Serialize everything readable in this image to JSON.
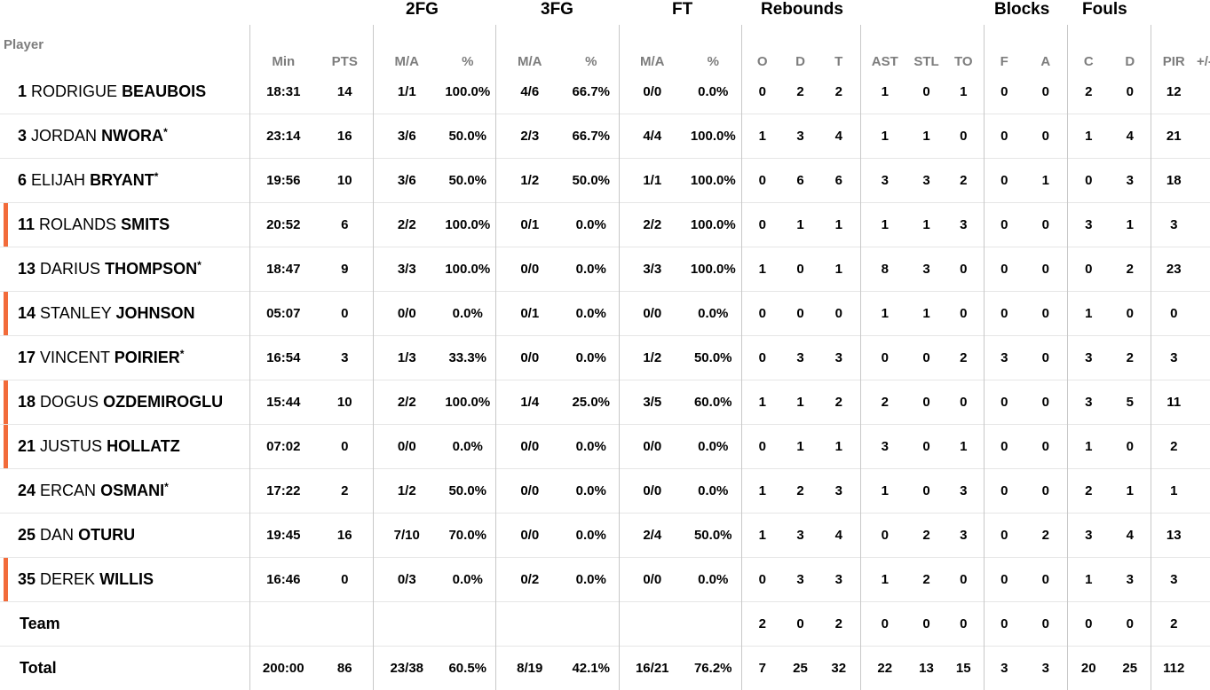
{
  "headers": {
    "player": "Player",
    "groups": {
      "fg2": "2FG",
      "fg3": "3FG",
      "ft": "FT",
      "rebounds": "Rebounds",
      "blocks": "Blocks",
      "fouls": "Fouls"
    },
    "cols": {
      "min": "Min",
      "pts": "PTS",
      "fg2_ma": "M/A",
      "fg2_pct": "%",
      "fg3_ma": "M/A",
      "fg3_pct": "%",
      "ft_ma": "M/A",
      "ft_pct": "%",
      "reb_o": "O",
      "reb_d": "D",
      "reb_t": "T",
      "ast": "AST",
      "stl": "STL",
      "to": "TO",
      "blk_f": "F",
      "blk_a": "A",
      "foul_c": "C",
      "foul_d": "D",
      "pir": "PIR",
      "pm": "+/-"
    }
  },
  "colors": {
    "starter_marker": "#f26b3a",
    "divider": "#c8c8c8",
    "header_text": "#7d7d7d"
  },
  "players": [
    {
      "num": "1",
      "first": "RODRIGUE",
      "last": "BEAUBOIS",
      "star": "",
      "starter": false,
      "min": "18:31",
      "pts": "14",
      "fg2_ma": "1/1",
      "fg2_pct": "100.0%",
      "fg3_ma": "4/6",
      "fg3_pct": "66.7%",
      "ft_ma": "0/0",
      "ft_pct": "0.0%",
      "reb_o": "0",
      "reb_d": "2",
      "reb_t": "2",
      "ast": "1",
      "stl": "0",
      "to": "1",
      "blk_f": "0",
      "blk_a": "0",
      "foul_c": "2",
      "foul_d": "0",
      "pir": "12"
    },
    {
      "num": "3",
      "first": "JORDAN",
      "last": "NWORA",
      "star": "*",
      "starter": false,
      "min": "23:14",
      "pts": "16",
      "fg2_ma": "3/6",
      "fg2_pct": "50.0%",
      "fg3_ma": "2/3",
      "fg3_pct": "66.7%",
      "ft_ma": "4/4",
      "ft_pct": "100.0%",
      "reb_o": "1",
      "reb_d": "3",
      "reb_t": "4",
      "ast": "1",
      "stl": "1",
      "to": "0",
      "blk_f": "0",
      "blk_a": "0",
      "foul_c": "1",
      "foul_d": "4",
      "pir": "21"
    },
    {
      "num": "6",
      "first": "ELIJAH",
      "last": "BRYANT",
      "star": "*",
      "starter": false,
      "min": "19:56",
      "pts": "10",
      "fg2_ma": "3/6",
      "fg2_pct": "50.0%",
      "fg3_ma": "1/2",
      "fg3_pct": "50.0%",
      "ft_ma": "1/1",
      "ft_pct": "100.0%",
      "reb_o": "0",
      "reb_d": "6",
      "reb_t": "6",
      "ast": "3",
      "stl": "3",
      "to": "2",
      "blk_f": "0",
      "blk_a": "1",
      "foul_c": "0",
      "foul_d": "3",
      "pir": "18"
    },
    {
      "num": "11",
      "first": "ROLANDS",
      "last": "SMITS",
      "star": "",
      "starter": true,
      "min": "20:52",
      "pts": "6",
      "fg2_ma": "2/2",
      "fg2_pct": "100.0%",
      "fg3_ma": "0/1",
      "fg3_pct": "0.0%",
      "ft_ma": "2/2",
      "ft_pct": "100.0%",
      "reb_o": "0",
      "reb_d": "1",
      "reb_t": "1",
      "ast": "1",
      "stl": "1",
      "to": "3",
      "blk_f": "0",
      "blk_a": "0",
      "foul_c": "3",
      "foul_d": "1",
      "pir": "3"
    },
    {
      "num": "13",
      "first": "DARIUS",
      "last": "THOMPSON",
      "star": "*",
      "starter": false,
      "min": "18:47",
      "pts": "9",
      "fg2_ma": "3/3",
      "fg2_pct": "100.0%",
      "fg3_ma": "0/0",
      "fg3_pct": "0.0%",
      "ft_ma": "3/3",
      "ft_pct": "100.0%",
      "reb_o": "1",
      "reb_d": "0",
      "reb_t": "1",
      "ast": "8",
      "stl": "3",
      "to": "0",
      "blk_f": "0",
      "blk_a": "0",
      "foul_c": "0",
      "foul_d": "2",
      "pir": "23"
    },
    {
      "num": "14",
      "first": "STANLEY",
      "last": "JOHNSON",
      "star": "",
      "starter": true,
      "min": "05:07",
      "pts": "0",
      "fg2_ma": "0/0",
      "fg2_pct": "0.0%",
      "fg3_ma": "0/1",
      "fg3_pct": "0.0%",
      "ft_ma": "0/0",
      "ft_pct": "0.0%",
      "reb_o": "0",
      "reb_d": "0",
      "reb_t": "0",
      "ast": "1",
      "stl": "1",
      "to": "0",
      "blk_f": "0",
      "blk_a": "0",
      "foul_c": "1",
      "foul_d": "0",
      "pir": "0"
    },
    {
      "num": "17",
      "first": "VINCENT",
      "last": "POIRIER",
      "star": "*",
      "starter": false,
      "min": "16:54",
      "pts": "3",
      "fg2_ma": "1/3",
      "fg2_pct": "33.3%",
      "fg3_ma": "0/0",
      "fg3_pct": "0.0%",
      "ft_ma": "1/2",
      "ft_pct": "50.0%",
      "reb_o": "0",
      "reb_d": "3",
      "reb_t": "3",
      "ast": "0",
      "stl": "0",
      "to": "2",
      "blk_f": "3",
      "blk_a": "0",
      "foul_c": "3",
      "foul_d": "2",
      "pir": "3"
    },
    {
      "num": "18",
      "first": "DOGUS",
      "last": "OZDEMIROGLU",
      "star": "",
      "starter": true,
      "min": "15:44",
      "pts": "10",
      "fg2_ma": "2/2",
      "fg2_pct": "100.0%",
      "fg3_ma": "1/4",
      "fg3_pct": "25.0%",
      "ft_ma": "3/5",
      "ft_pct": "60.0%",
      "reb_o": "1",
      "reb_d": "1",
      "reb_t": "2",
      "ast": "2",
      "stl": "0",
      "to": "0",
      "blk_f": "0",
      "blk_a": "0",
      "foul_c": "3",
      "foul_d": "5",
      "pir": "11"
    },
    {
      "num": "21",
      "first": "JUSTUS",
      "last": "HOLLATZ",
      "star": "",
      "starter": true,
      "min": "07:02",
      "pts": "0",
      "fg2_ma": "0/0",
      "fg2_pct": "0.0%",
      "fg3_ma": "0/0",
      "fg3_pct": "0.0%",
      "ft_ma": "0/0",
      "ft_pct": "0.0%",
      "reb_o": "0",
      "reb_d": "1",
      "reb_t": "1",
      "ast": "3",
      "stl": "0",
      "to": "1",
      "blk_f": "0",
      "blk_a": "0",
      "foul_c": "1",
      "foul_d": "0",
      "pir": "2"
    },
    {
      "num": "24",
      "first": "ERCAN",
      "last": "OSMANI",
      "star": "*",
      "starter": false,
      "min": "17:22",
      "pts": "2",
      "fg2_ma": "1/2",
      "fg2_pct": "50.0%",
      "fg3_ma": "0/0",
      "fg3_pct": "0.0%",
      "ft_ma": "0/0",
      "ft_pct": "0.0%",
      "reb_o": "1",
      "reb_d": "2",
      "reb_t": "3",
      "ast": "1",
      "stl": "0",
      "to": "3",
      "blk_f": "0",
      "blk_a": "0",
      "foul_c": "2",
      "foul_d": "1",
      "pir": "1"
    },
    {
      "num": "25",
      "first": "DAN",
      "last": "OTURU",
      "star": "",
      "starter": false,
      "min": "19:45",
      "pts": "16",
      "fg2_ma": "7/10",
      "fg2_pct": "70.0%",
      "fg3_ma": "0/0",
      "fg3_pct": "0.0%",
      "ft_ma": "2/4",
      "ft_pct": "50.0%",
      "reb_o": "1",
      "reb_d": "3",
      "reb_t": "4",
      "ast": "0",
      "stl": "2",
      "to": "3",
      "blk_f": "0",
      "blk_a": "2",
      "foul_c": "3",
      "foul_d": "4",
      "pir": "13"
    },
    {
      "num": "35",
      "first": "DEREK",
      "last": "WILLIS",
      "star": "",
      "starter": true,
      "min": "16:46",
      "pts": "0",
      "fg2_ma": "0/3",
      "fg2_pct": "0.0%",
      "fg3_ma": "0/2",
      "fg3_pct": "0.0%",
      "ft_ma": "0/0",
      "ft_pct": "0.0%",
      "reb_o": "0",
      "reb_d": "3",
      "reb_t": "3",
      "ast": "1",
      "stl": "2",
      "to": "0",
      "blk_f": "0",
      "blk_a": "0",
      "foul_c": "1",
      "foul_d": "3",
      "pir": "3"
    }
  ],
  "team": {
    "label": "Team",
    "min": "",
    "pts": "",
    "fg2_ma": "",
    "fg2_pct": "",
    "fg3_ma": "",
    "fg3_pct": "",
    "ft_ma": "",
    "ft_pct": "",
    "reb_o": "2",
    "reb_d": "0",
    "reb_t": "2",
    "ast": "0",
    "stl": "0",
    "to": "0",
    "blk_f": "0",
    "blk_a": "0",
    "foul_c": "0",
    "foul_d": "0",
    "pir": "2"
  },
  "total": {
    "label": "Total",
    "min": "200:00",
    "pts": "86",
    "fg2_ma": "23/38",
    "fg2_pct": "60.5%",
    "fg3_ma": "8/19",
    "fg3_pct": "42.1%",
    "ft_ma": "16/21",
    "ft_pct": "76.2%",
    "reb_o": "7",
    "reb_d": "25",
    "reb_t": "32",
    "ast": "22",
    "stl": "13",
    "to": "15",
    "blk_f": "3",
    "blk_a": "3",
    "foul_c": "20",
    "foul_d": "25",
    "pir": "112"
  }
}
